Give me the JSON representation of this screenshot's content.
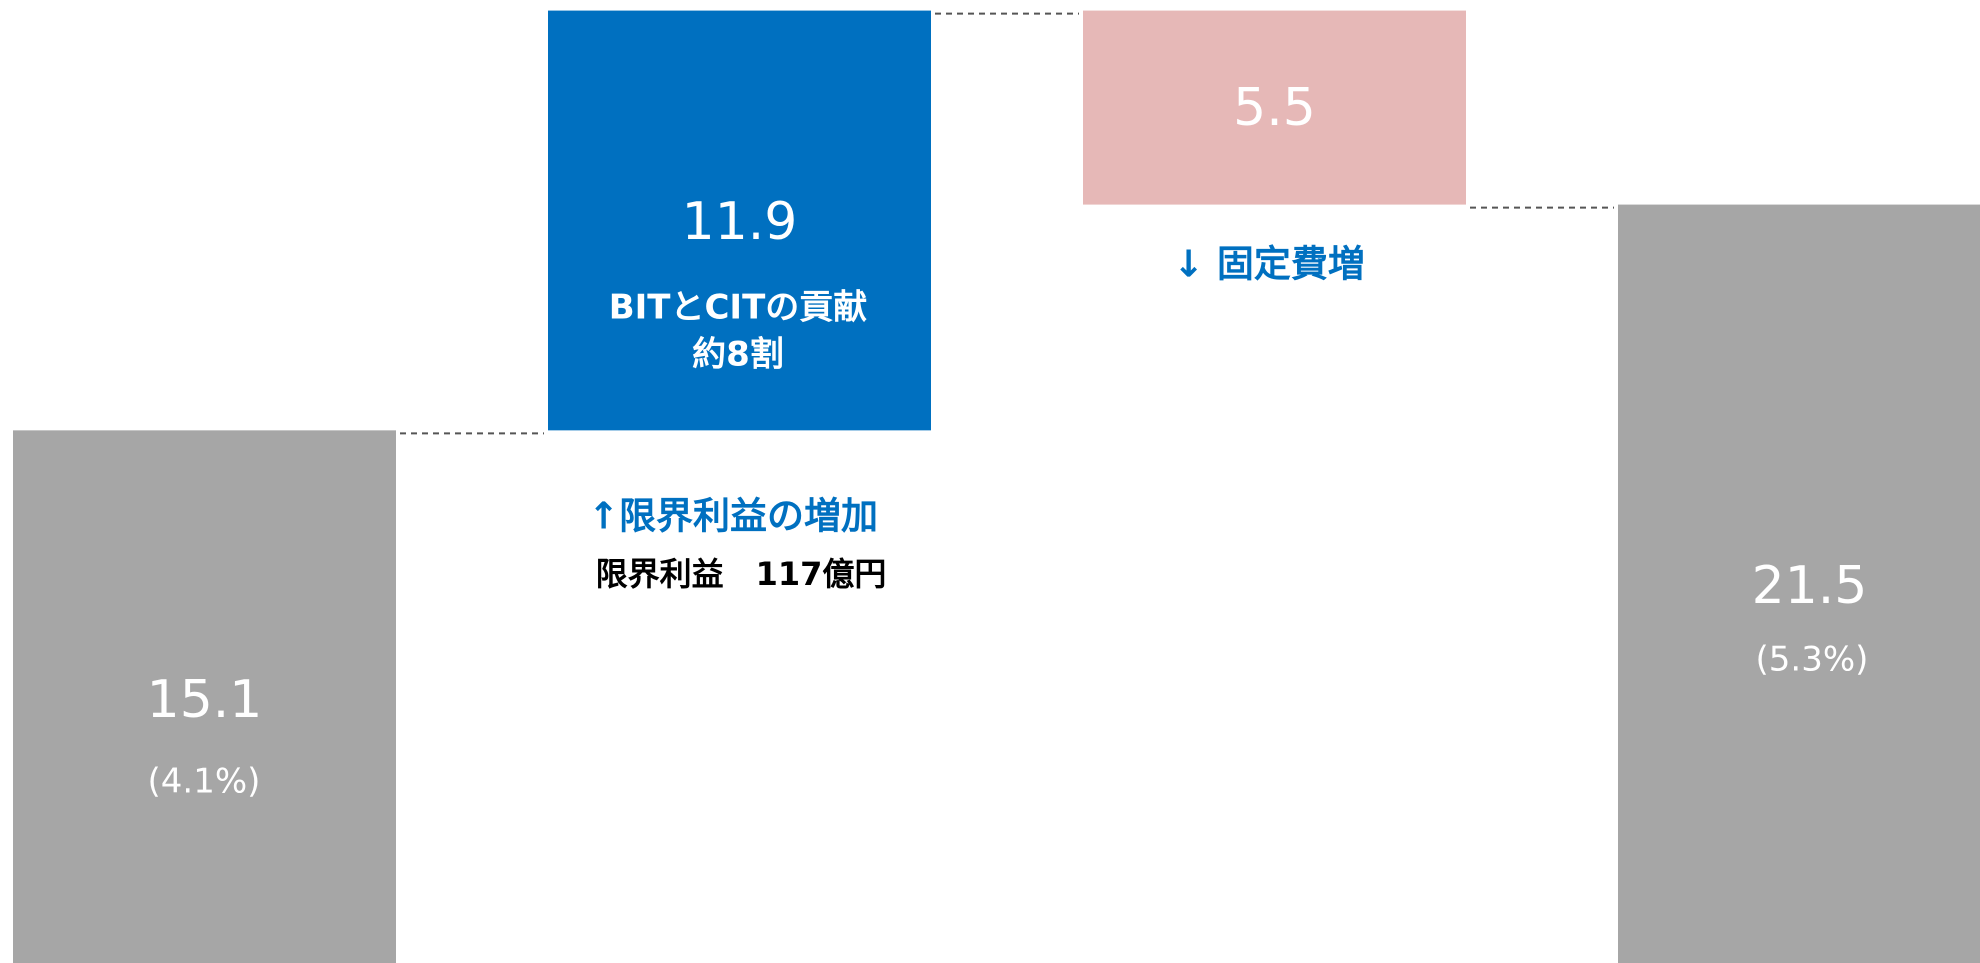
{
  "chart_data": {
    "type": "waterfall",
    "values": [
      15.1,
      11.9,
      -5.5,
      21.5
    ],
    "value_labels": [
      "15.1",
      "11.9",
      "5.5",
      "21.5"
    ],
    "kinds": [
      "total",
      "delta",
      "delta",
      "total"
    ],
    "colors": [
      "#a6a6a6",
      "#0070c0",
      "#e6b8b7",
      "#a6a6a6"
    ],
    "ylim": [
      0,
      27.3
    ],
    "notes": {
      "start_share": "(4.1%)",
      "end_share": "(5.3%)",
      "contribution": [
        "BITとCITの貢献",
        "約8割"
      ],
      "margin_label": "↑限界利益の増加",
      "margin_detail": "限界利益　117億円",
      "fixed_cost_label": "↓ 固定費増"
    }
  }
}
